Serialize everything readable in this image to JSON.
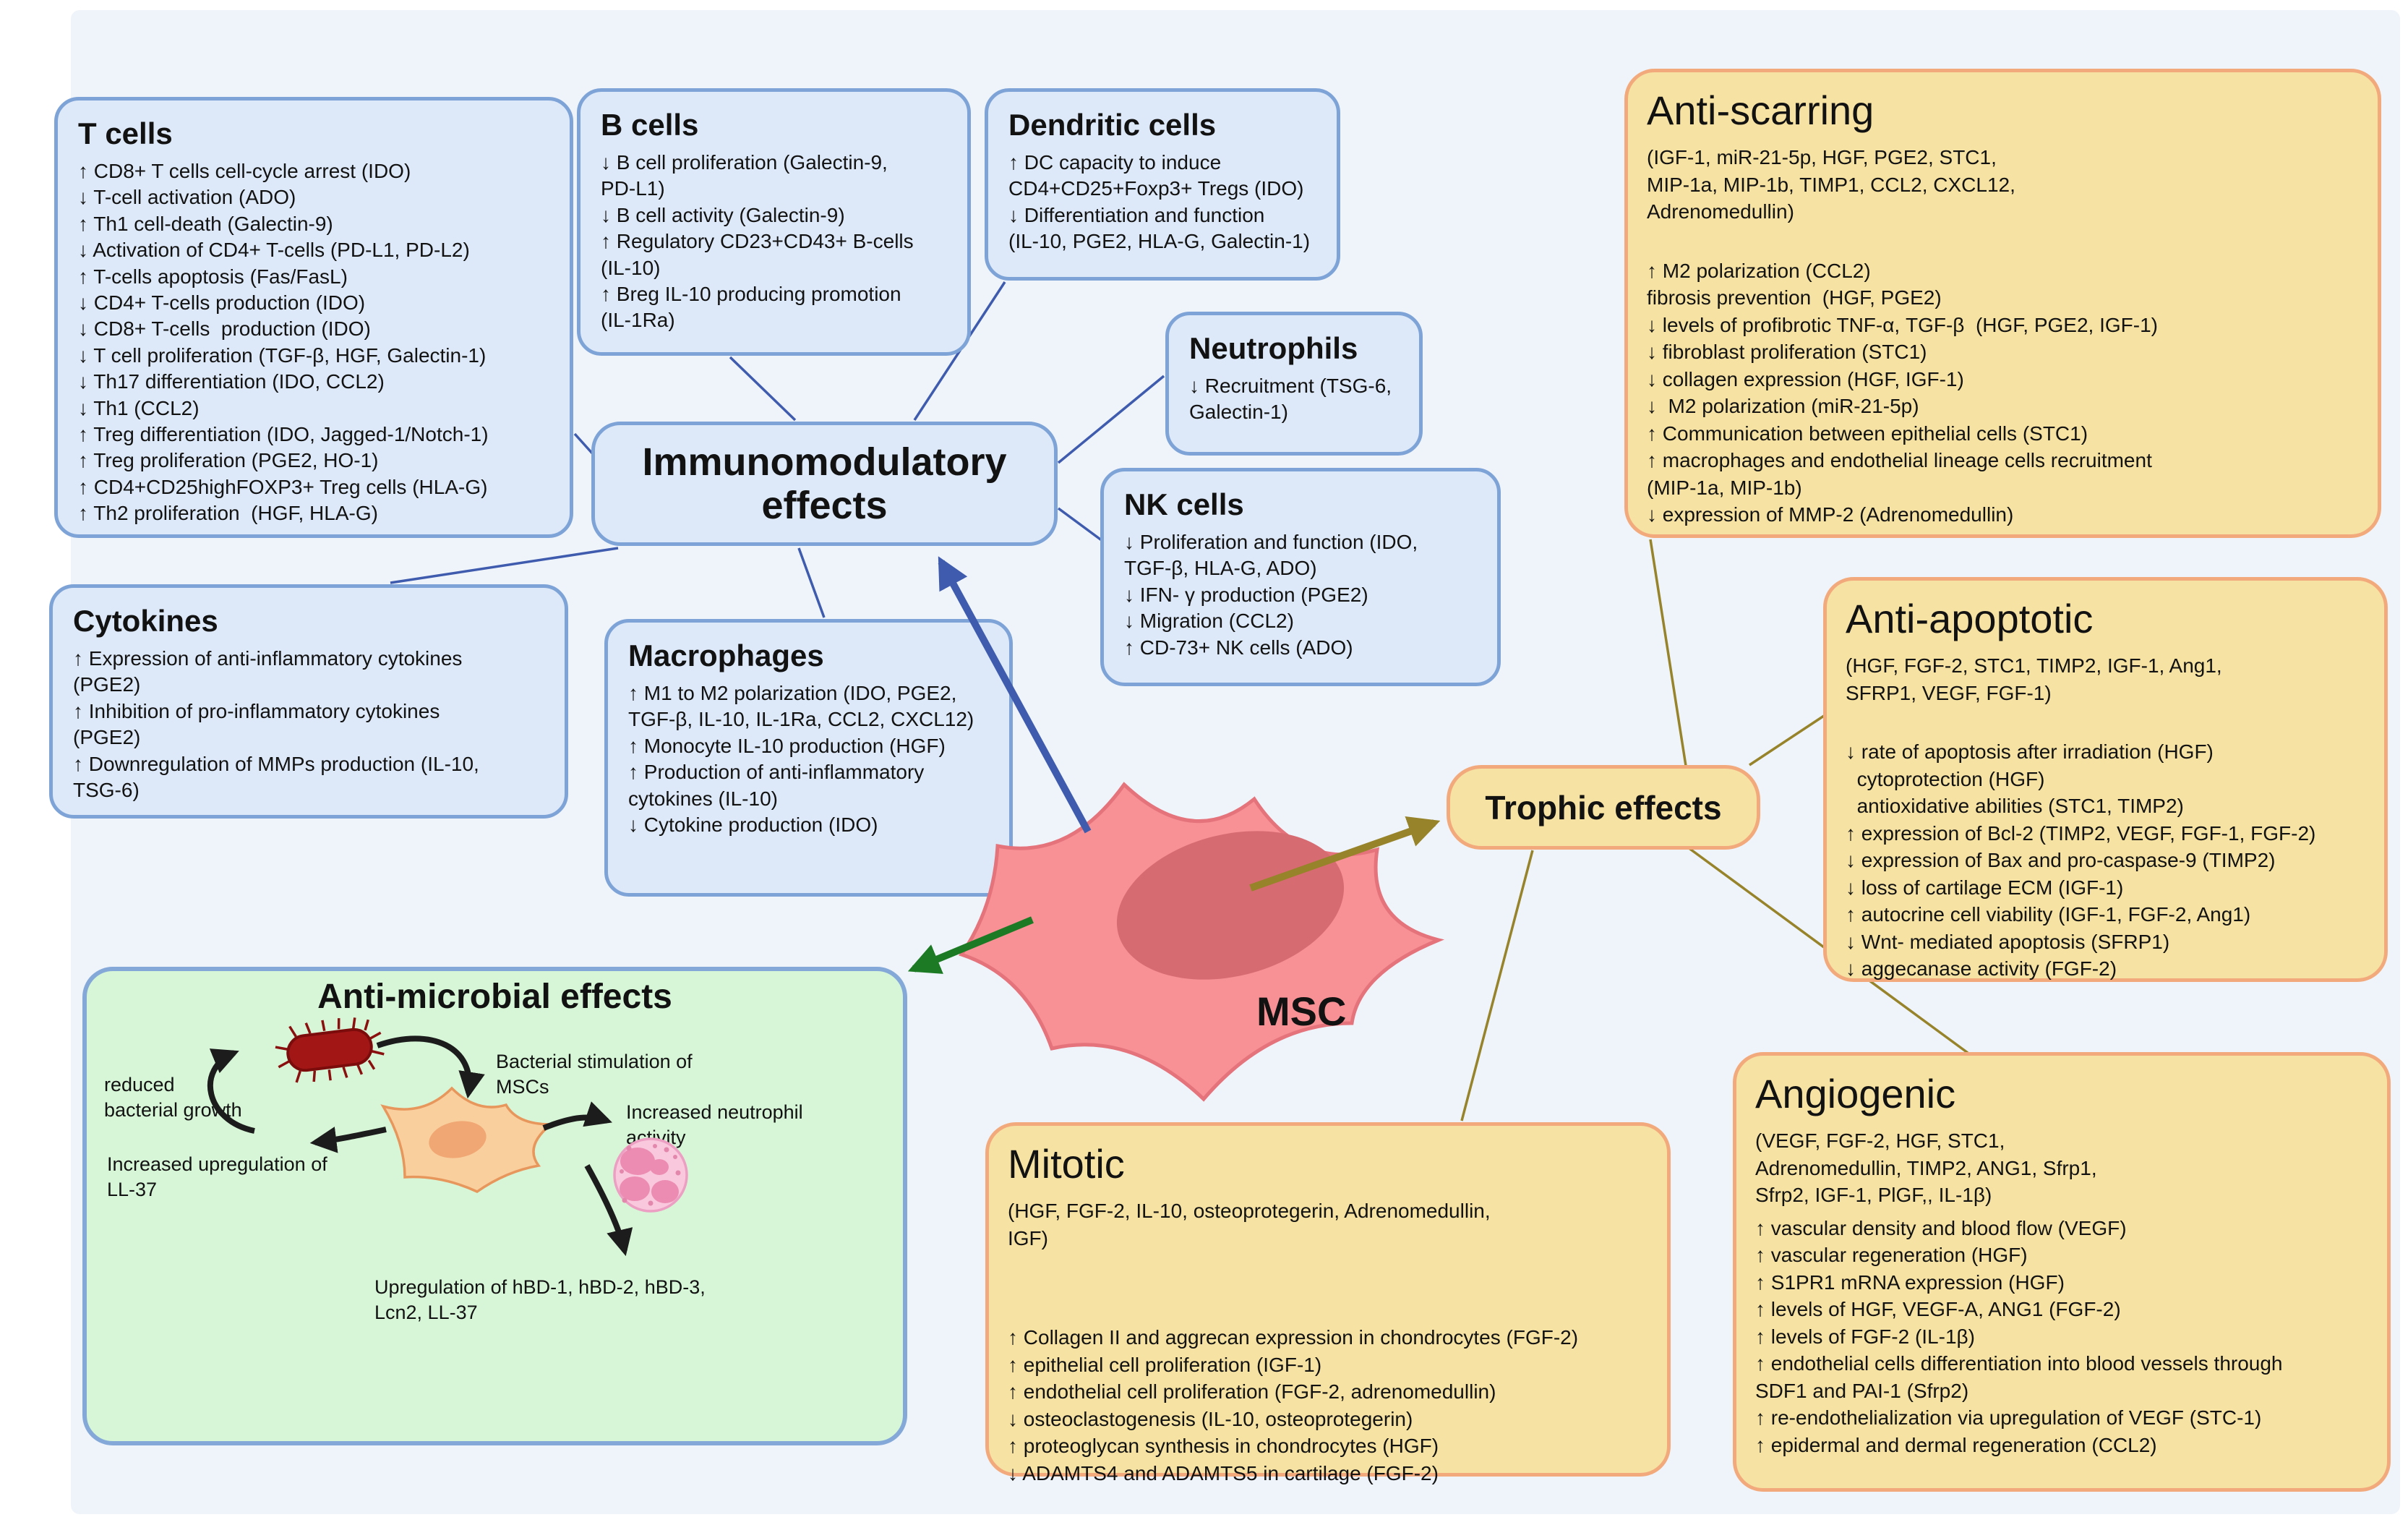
{
  "colors": {
    "background": "#eff4fa",
    "blue_box_fill": "#dde9f8",
    "blue_box_border": "#7ea3d7",
    "yellow_box_fill": "#f6e2a2",
    "yellow_box_border": "#f2aa7c",
    "green_box_fill": "#d7f6d7",
    "msc_cell": "#f79195",
    "msc_nucleus": "#d76b72",
    "immuno_connector": "#3e5bad",
    "trophic_connector": "#97832a",
    "antimicrobial_arrow": "#1d7a24",
    "bacterium": "#a21616",
    "neutrophil": "#f9c8dc"
  },
  "hubs": {
    "immuno": {
      "title": "Immunomodulatory effects"
    },
    "trophic": {
      "title": "Trophic effects"
    },
    "msc": {
      "label": "MSC"
    }
  },
  "boxes": {
    "t_cells": {
      "title": "T cells",
      "items": [
        "↑ CD8+ T cells cell-cycle arrest (IDO)",
        "↓ T-cell activation (ADO)",
        "↑ Th1 cell-death (Galectin-9)",
        "↓ Activation of CD4+ T-cells (PD-L1, PD-L2)",
        "↑ T-cells apoptosis (Fas/FasL)",
        "↓ CD4+ T-cells production (IDO)",
        "↓ CD8+ T-cells  production (IDO)",
        "↓ T cell proliferation (TGF-β, HGF, Galectin-1)",
        "↓ Th17 differentiation (IDO, CCL2)",
        "↓ Th1 (CCL2)",
        "↑ Treg differentiation (IDO, Jagged-1/Notch-1)",
        "↑ Treg proliferation (PGE2, HO-1)",
        "↑ CD4+CD25highFOXP3+ Treg cells (HLA-G)",
        "↑ Th2 proliferation  (HGF, HLA-G)"
      ]
    },
    "b_cells": {
      "title": "B cells",
      "items": [
        "↓ B cell proliferation (Galectin-9,\nPD-L1)",
        "↓ B cell activity (Galectin-9)",
        "↑ Regulatory CD23+CD43+ B-cells\n(IL-10)",
        "↑ Breg IL-10 producing promotion\n(IL-1Ra)"
      ]
    },
    "dendritic": {
      "title": "Dendritic cells",
      "items": [
        "↑ DC capacity to induce\nCD4+CD25+Foxp3+ Tregs (IDO)",
        "↓ Differentiation and function\n(IL-10, PGE2, HLA-G, Galectin-1)"
      ]
    },
    "neutrophils": {
      "title": "Neutrophils",
      "items": [
        "↓ Recruitment (TSG-6,\nGalectin-1)"
      ]
    },
    "nk_cells": {
      "title": "NK cells",
      "items": [
        "↓ Proliferation and function (IDO,\nTGF-β, HLA-G, ADO)",
        "↓ IFN- γ production (PGE2)",
        "↓ Migration (CCL2)",
        "↑ CD-73+ NK cells (ADO)"
      ]
    },
    "macrophages": {
      "title": "Macrophages",
      "items": [
        "↑ M1 to M2 polarization (IDO, PGE2,\nTGF-β, IL-10, IL-1Ra, CCL2, CXCL12)",
        "↑ Monocyte IL-10 production (HGF)",
        "↑ Production of anti-inflammatory\ncytokines (IL-10)",
        "↓ Cytokine production (IDO)"
      ]
    },
    "cytokines": {
      "title": "Cytokines",
      "items": [
        "↑ Expression of anti-inflammatory cytokines\n(PGE2)",
        "↑ Inhibition of pro-inflammatory cytokines\n(PGE2)",
        "↑ Downregulation of MMPs production (IL-10,\nTSG-6)"
      ]
    },
    "anti_scarring": {
      "title": "Anti-scarring",
      "mediators": "(IGF-1, miR-21-5p, HGF, PGE2, STC1,\nMIP-1a, MIP-1b, TIMP1, CCL2, CXCL12,\nAdrenomedullin)",
      "items": [
        "↑ M2 polarization (CCL2)",
        "fibrosis prevention  (HGF, PGE2)",
        "↓ levels of profibrotic TNF-α, TGF-β  (HGF, PGE2, IGF-1)",
        "↓ fibroblast proliferation (STC1)",
        "↓ collagen expression (HGF, IGF-1)",
        "↓  M2 polarization (miR-21-5p)",
        "↑ Communication between epithelial cells (STC1)",
        "↑ macrophages and endothelial lineage cells recruitment\n(MIP-1a, MIP-1b)",
        "↓ expression of MMP-2 (Adrenomedullin)"
      ]
    },
    "anti_apoptotic": {
      "title": "Anti-apoptotic",
      "mediators": "(HGF, FGF-2, STC1, TIMP2, IGF-1, Ang1,\nSFRP1, VEGF, FGF-1)",
      "items": [
        "↓ rate of apoptosis after irradiation (HGF)",
        "  cytoprotection (HGF)",
        "  antioxidative abilities (STC1, TIMP2)",
        "↑ expression of Bcl-2 (TIMP2, VEGF, FGF-1, FGF-2)",
        "↓ expression of Bax and pro-caspase-9 (TIMP2)",
        "↓ loss of cartilage ECM (IGF-1)",
        "↑ autocrine cell viability (IGF-1, FGF-2, Ang1)",
        "↓ Wnt- mediated apoptosis (SFRP1)",
        "↓ aggecanase activity (FGF-2)"
      ]
    },
    "angiogenic": {
      "title": "Angiogenic",
      "mediators": "(VEGF, FGF-2, HGF, STC1,\nAdrenomedullin, TIMP2, ANG1, Sfrp1,\nSfrp2, IGF-1, PlGF,, IL-1β)",
      "items": [
        "↑ vascular density and blood flow (VEGF)",
        "↑ vascular regeneration (HGF)",
        "↑ S1PR1 mRNA expression (HGF)",
        "↑ levels of HGF, VEGF-A, ANG1 (FGF-2)",
        "↑ levels of FGF-2 (IL-1β)",
        "↑ endothelial cells differentiation into blood vessels through\nSDF1 and PAI-1 (Sfrp2)",
        "↑ re-endothelialization via upregulation of VEGF (STC-1)",
        "↑ epidermal and dermal regeneration (CCL2)"
      ]
    },
    "mitotic": {
      "title": "Mitotic",
      "mediators": "(HGF, FGF-2, IL-10, osteoprotegerin, Adrenomedullin,\nIGF)",
      "items": [
        "↑ Collagen II and aggrecan expression in chondrocytes (FGF-2)",
        "↑ epithelial cell proliferation (IGF-1)",
        "↑ endothelial cell proliferation (FGF-2, adrenomedullin)",
        "↓ osteoclastogenesis (IL-10, osteoprotegerin)",
        "↑ proteoglycan synthesis in chondrocytes (HGF)",
        "↓ ADAMTS4 and ADAMTS5 in cartilage (FGF-2)"
      ]
    },
    "anti_microbial": {
      "title": "Anti-microbial effects",
      "labels": {
        "reduced_growth": "reduced\nbacterial growth",
        "stimulation": "Bacterial stimulation of\nMSCs",
        "neutrophil_activity": "Increased neutrophil\nactivity",
        "ll37": "Increased upregulation of\nLL-37",
        "defensins": "Upregulation of hBD-1, hBD-2, hBD-3,\nLcn2, LL-37"
      }
    }
  }
}
